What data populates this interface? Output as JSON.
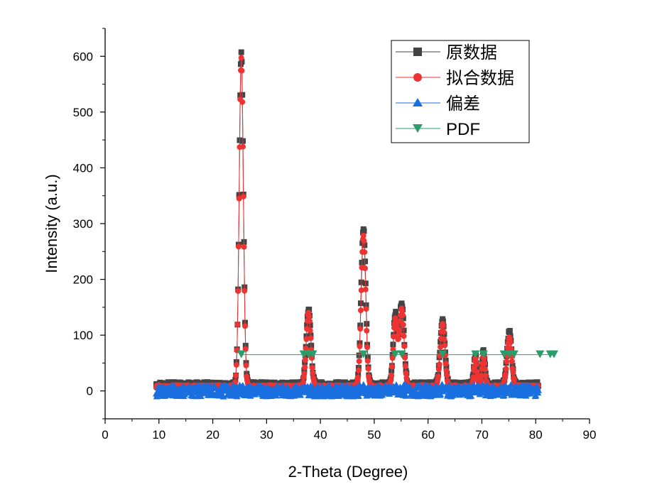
{
  "chart_data": {
    "type": "line",
    "title": "",
    "xlabel": "2-Theta (Degree)",
    "ylabel": "Intensity (a.u.)",
    "xlim": [
      0,
      90
    ],
    "ylim": [
      -50,
      650
    ],
    "x_ticks": [
      0,
      10,
      20,
      30,
      40,
      50,
      60,
      70,
      80,
      90
    ],
    "y_ticks": [
      0,
      100,
      200,
      300,
      400,
      500,
      600
    ],
    "grid": false,
    "legend_position": "top-right",
    "peaks": [
      {
        "x": 25.3,
        "raw": 595,
        "fit": 588,
        "width": 0.8
      },
      {
        "x": 37.8,
        "raw": 135,
        "fit": 130,
        "width": 0.9
      },
      {
        "x": 48.0,
        "raw": 280,
        "fit": 270,
        "width": 0.9
      },
      {
        "x": 53.9,
        "raw": 125,
        "fit": 118,
        "width": 0.8
      },
      {
        "x": 55.1,
        "raw": 147,
        "fit": 140,
        "width": 0.9
      },
      {
        "x": 62.7,
        "raw": 118,
        "fit": 110,
        "width": 0.9
      },
      {
        "x": 68.8,
        "raw": 52,
        "fit": 48,
        "width": 0.6
      },
      {
        "x": 70.3,
        "raw": 60,
        "fit": 55,
        "width": 0.6
      },
      {
        "x": 75.1,
        "raw": 95,
        "fit": 88,
        "width": 0.9
      }
    ],
    "series": [
      {
        "name": "原数据",
        "color": "#444444",
        "marker": "square",
        "x_range": [
          9.5,
          80.5
        ],
        "baseline": 12,
        "noise": 8
      },
      {
        "name": "拟合数据",
        "color": "#ee3333",
        "marker": "circle",
        "x_range": [
          9.5,
          80.5
        ],
        "baseline": 8,
        "noise": 5
      },
      {
        "name": "偏差",
        "color": "#1a6fe0",
        "marker": "triangle-up",
        "x_range": [
          9.5,
          80.5
        ],
        "baseline": 0,
        "noise": 10
      },
      {
        "name": "PDF",
        "color": "#2a9d6a",
        "marker": "triangle-down",
        "level": 65,
        "x_range": [
          25.3,
          83.5
        ],
        "positions": [
          25.3,
          36.9,
          37.8,
          38.6,
          48.0,
          53.9,
          55.1,
          62.7,
          68.8,
          70.3,
          74.1,
          75.1,
          76.0,
          80.8,
          82.7,
          83.4
        ]
      }
    ]
  }
}
